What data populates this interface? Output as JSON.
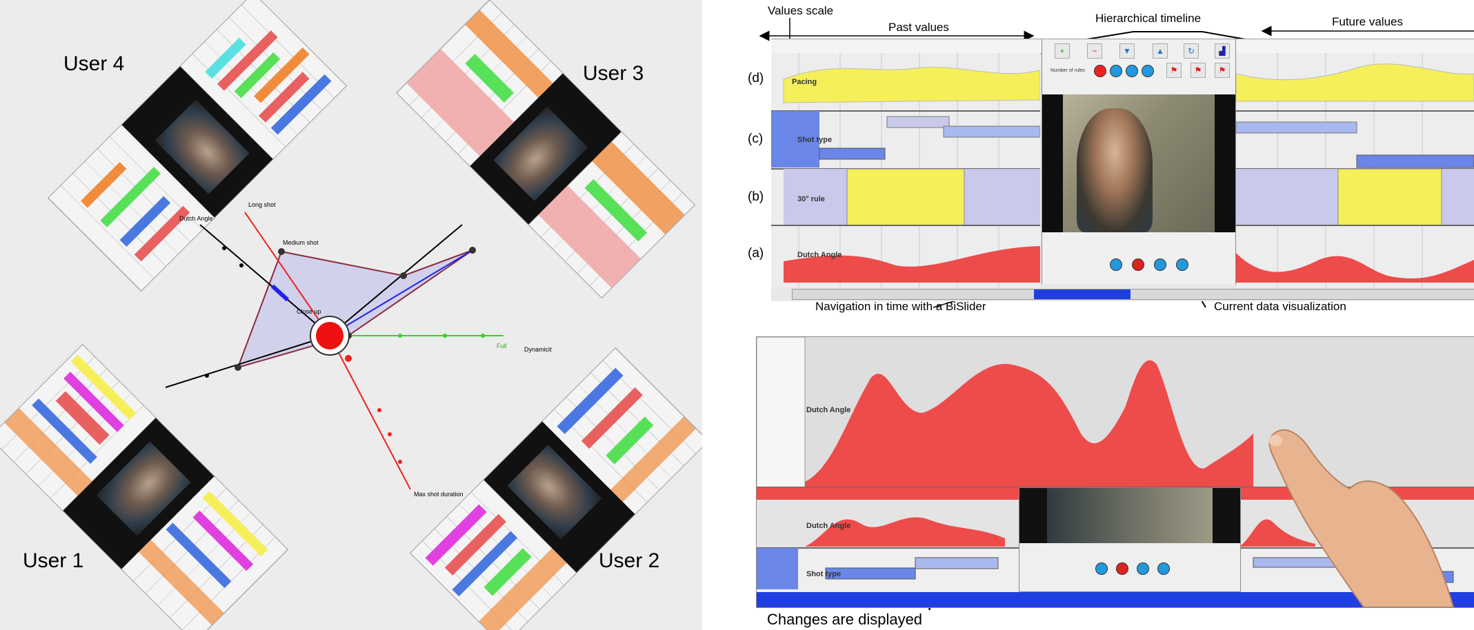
{
  "left": {
    "users": [
      "User 1",
      "User 2",
      "User 3",
      "User 4"
    ],
    "radar_labels": [
      "Max shot duration",
      "Dynamicity",
      "Full",
      "Close up",
      "Medium shot",
      "Long shot",
      "Dutch Angle"
    ]
  },
  "right": {
    "annotations": {
      "values_scale": "Values scale",
      "past_values": "Past values",
      "hierarchical_timeline": "Hierarchical timeline",
      "future_values": "Future values",
      "navigation": "Navigation in time with a BiSlider",
      "current_data": "Current data visualization",
      "changes": "Changes are displayed"
    },
    "rows": [
      "(d)",
      "(c)",
      "(b)",
      "(a)"
    ],
    "tracks": {
      "d": "Pacing",
      "c": "Shot type",
      "b": "30° rule",
      "a": "Dutch Angle"
    },
    "bottom_tracks": {
      "top": "Dutch Angle",
      "mid": "Dutch Angle",
      "low": "Shot type"
    },
    "video_label": "Number of rules"
  },
  "colors": {
    "yellow": "#f5ef5a",
    "red": "#ee4b4b",
    "lavender": "#c9c9ec",
    "blue_box": "#a9b8ee",
    "slider_blue": "#1f3fe0"
  }
}
